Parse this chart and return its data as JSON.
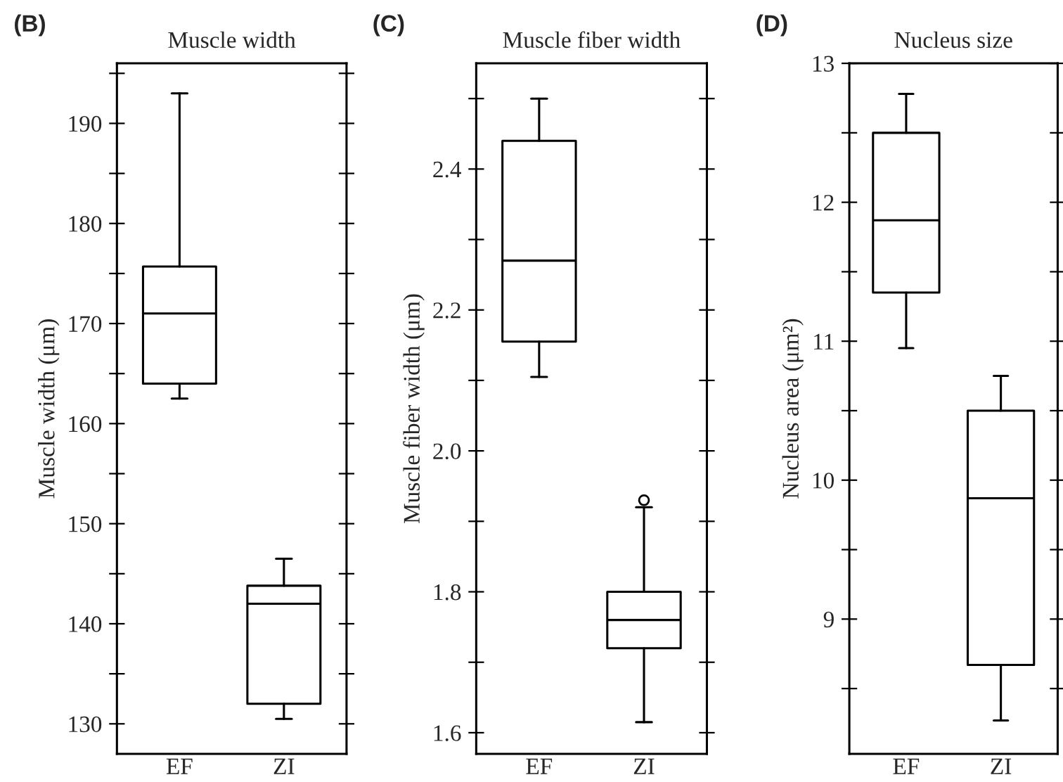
{
  "chart_data": [
    {
      "type": "box",
      "title": "Muscle width",
      "ylabel": "Muscle width (μm)",
      "annotations": [
        "(B)"
      ],
      "categories": [
        "EF",
        "ZI"
      ],
      "boxes": [
        {
          "low": 162.5,
          "q1": 164,
          "median": 171,
          "q3": 175.7,
          "high": 193
        },
        {
          "low": 130.5,
          "q1": 132,
          "median": 142,
          "q3": 143.8,
          "high": 146.5
        }
      ],
      "ylim": [
        127,
        196
      ],
      "yticks": [
        130,
        {
          "value": 135,
          "label": null
        },
        140,
        {
          "value": 145,
          "label": null
        },
        150,
        {
          "value": 155,
          "label": null
        },
        160,
        {
          "value": 165,
          "label": null
        },
        170,
        {
          "value": 175,
          "label": null
        },
        180,
        {
          "value": 185,
          "label": null
        },
        190,
        {
          "value": 195,
          "label": null
        }
      ]
    },
    {
      "type": "box",
      "title": "Muscle fiber width",
      "ylabel": "Muscle fiber width (μm)",
      "annotations": [
        "(C)"
      ],
      "categories": [
        "EF",
        "ZI"
      ],
      "boxes": [
        {
          "low": 2.105,
          "q1": 2.155,
          "median": 2.27,
          "q3": 2.44,
          "high": 2.5
        },
        {
          "low": 1.615,
          "q1": 1.72,
          "median": 1.76,
          "q3": 1.8,
          "high": 1.92,
          "outliers": [
            1.93
          ]
        }
      ],
      "ylim": [
        1.57,
        2.55
      ],
      "yticks": [
        {
          "value": 1.6,
          "label": "1.6"
        },
        {
          "value": 1.7,
          "label": null
        },
        {
          "value": 1.8,
          "label": "1.8"
        },
        {
          "value": 1.9,
          "label": null
        },
        {
          "value": 2.0,
          "label": "2.0"
        },
        {
          "value": 2.1,
          "label": null
        },
        {
          "value": 2.2,
          "label": "2.2"
        },
        {
          "value": 2.3,
          "label": null
        },
        {
          "value": 2.4,
          "label": "2.4"
        },
        {
          "value": 2.5,
          "label": null
        }
      ]
    },
    {
      "type": "box",
      "title": "Nucleus size",
      "ylabel": "Nucleus area (μm²)",
      "annotations": [
        "(D)"
      ],
      "categories": [
        "EF",
        "ZI"
      ],
      "boxes": [
        {
          "low": 10.95,
          "q1": 11.35,
          "median": 11.87,
          "q3": 12.5,
          "high": 12.78
        },
        {
          "low": 8.27,
          "q1": 8.67,
          "median": 9.87,
          "q3": 10.5,
          "high": 10.75
        }
      ],
      "ylim": [
        8.03,
        13
      ],
      "yticks": [
        {
          "value": 8.5,
          "label": null
        },
        9,
        {
          "value": 9.5,
          "label": null
        },
        10,
        {
          "value": 10.5,
          "label": null
        },
        11,
        {
          "value": 11.5,
          "label": null
        },
        12,
        {
          "value": 12.5,
          "label": null
        },
        13
      ]
    }
  ]
}
